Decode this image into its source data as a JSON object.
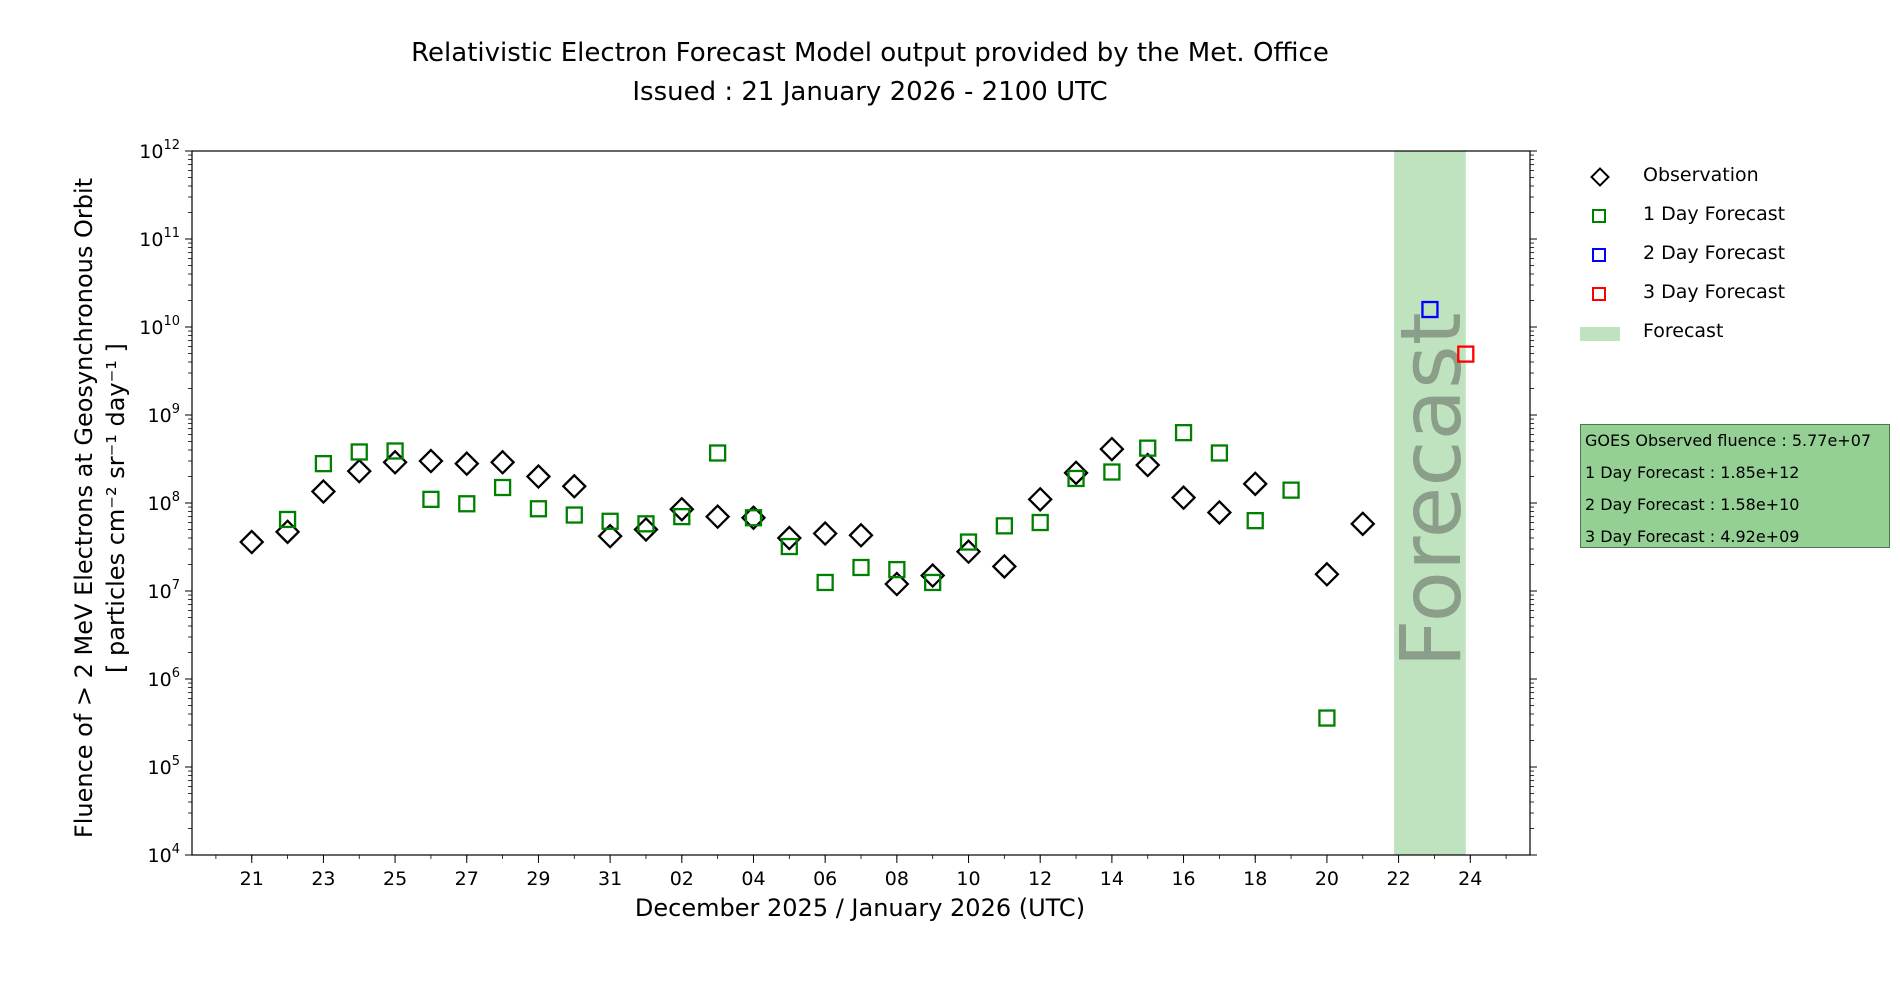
{
  "chart_data": {
    "type": "scatter",
    "title": "Relativistic Electron Forecast Model output provided by the Met. Office",
    "subtitle": "Issued : 21 January 2026 - 2100 UTC",
    "xlabel": "December 2025 / January 2026 (UTC)",
    "ylabel_line1": "Fluence of > 2 MeV Electrons at Geosynchronous Orbit",
    "ylabel_line2": "[ particles cm⁻² sr⁻¹ day⁻¹ ]",
    "y_scale": "log",
    "ylim": [
      10000,
      1000000000000
    ],
    "ytick_labels": [
      {
        "base": "10",
        "exp": "4"
      },
      {
        "base": "10",
        "exp": "5"
      },
      {
        "base": "10",
        "exp": "6"
      },
      {
        "base": "10",
        "exp": "7"
      },
      {
        "base": "10",
        "exp": "8"
      },
      {
        "base": "10",
        "exp": "9"
      },
      {
        "base": "10",
        "exp": "10"
      },
      {
        "base": "10",
        "exp": "11"
      },
      {
        "base": "10",
        "exp": "12"
      }
    ],
    "xlim": [
      "2025-12-19T08:00",
      "2026-01-25T16:00"
    ],
    "xtick_labels": [
      "21",
      "23",
      "25",
      "27",
      "29",
      "31",
      "02",
      "04",
      "06",
      "08",
      "10",
      "12",
      "14",
      "16",
      "18",
      "20",
      "22",
      "24"
    ],
    "xtick_dates": [
      "2025-12-21",
      "2025-12-23",
      "2025-12-25",
      "2025-12-27",
      "2025-12-29",
      "2025-12-31",
      "2026-01-02",
      "2026-01-04",
      "2026-01-06",
      "2026-01-08",
      "2026-01-10",
      "2026-01-12",
      "2026-01-14",
      "2026-01-16",
      "2026-01-18",
      "2026-01-20",
      "2026-01-22",
      "2026-01-24"
    ],
    "forecast_region": {
      "label": "Forecast",
      "start": "2026-01-21T21:00",
      "end": "2026-01-23T21:00",
      "color": "#bfe3bf"
    },
    "series": [
      {
        "name": "Observation",
        "marker": "diamond",
        "color": "#000000",
        "points": [
          [
            "2025-12-21",
            36000000
          ],
          [
            "2025-12-22",
            47000000
          ],
          [
            "2025-12-23",
            135000000
          ],
          [
            "2025-12-24",
            230000000
          ],
          [
            "2025-12-25",
            290000000
          ],
          [
            "2025-12-26",
            300000000
          ],
          [
            "2025-12-27",
            280000000
          ],
          [
            "2025-12-28",
            290000000
          ],
          [
            "2025-12-29",
            200000000
          ],
          [
            "2025-12-30",
            155000000
          ],
          [
            "2025-12-31",
            42000000
          ],
          [
            "2026-01-01",
            50000000
          ],
          [
            "2026-01-02",
            85000000
          ],
          [
            "2026-01-03",
            70000000
          ],
          [
            "2026-01-04",
            68000000
          ],
          [
            "2026-01-05",
            40000000
          ],
          [
            "2026-01-06",
            45000000
          ],
          [
            "2026-01-07",
            43000000
          ],
          [
            "2026-01-08",
            12000000
          ],
          [
            "2026-01-09",
            15000000
          ],
          [
            "2026-01-10",
            28000000
          ],
          [
            "2026-01-11",
            19000000
          ],
          [
            "2026-01-12",
            110000000
          ],
          [
            "2026-01-13",
            220000000
          ],
          [
            "2026-01-14",
            410000000
          ],
          [
            "2026-01-15",
            270000000
          ],
          [
            "2026-01-16",
            115000000
          ],
          [
            "2026-01-17",
            78000000
          ],
          [
            "2026-01-18",
            165000000
          ],
          [
            "2026-01-20",
            15500000
          ],
          [
            "2026-01-21",
            58000000
          ]
        ]
      },
      {
        "name": "1 Day Forecast",
        "marker": "square",
        "color": "#008000",
        "points": [
          [
            "2025-12-22",
            65000000
          ],
          [
            "2025-12-23",
            280000000
          ],
          [
            "2025-12-24",
            380000000
          ],
          [
            "2025-12-25",
            390000000
          ],
          [
            "2025-12-26",
            110000000
          ],
          [
            "2025-12-27",
            98000000
          ],
          [
            "2025-12-28",
            150000000
          ],
          [
            "2025-12-29",
            86000000
          ],
          [
            "2025-12-30",
            73000000
          ],
          [
            "2025-12-31",
            62000000
          ],
          [
            "2026-01-01",
            58000000
          ],
          [
            "2026-01-02",
            70000000
          ],
          [
            "2026-01-03",
            370000000
          ],
          [
            "2026-01-04",
            68000000
          ],
          [
            "2026-01-05",
            32000000
          ],
          [
            "2026-01-06",
            12500000
          ],
          [
            "2026-01-07",
            18500000
          ],
          [
            "2026-01-08",
            17500000
          ],
          [
            "2026-01-09",
            12500000
          ],
          [
            "2026-01-10",
            36000000
          ],
          [
            "2026-01-11",
            55000000
          ],
          [
            "2026-01-12",
            60000000
          ],
          [
            "2026-01-13",
            190000000
          ],
          [
            "2026-01-14",
            225000000
          ],
          [
            "2026-01-15",
            420000000
          ],
          [
            "2026-01-16",
            630000000
          ],
          [
            "2026-01-17",
            370000000
          ],
          [
            "2026-01-18",
            63000000
          ],
          [
            "2026-01-19",
            140000000
          ],
          [
            "2026-01-20",
            360000
          ]
        ]
      },
      {
        "name": "2 Day Forecast",
        "marker": "square",
        "color": "#0000ff",
        "points": [
          [
            "2026-01-22T21:00",
            15800000000
          ]
        ]
      },
      {
        "name": "3 Day Forecast",
        "marker": "square",
        "color": "#ff0000",
        "points": [
          [
            "2026-01-23T21:00",
            4920000000
          ]
        ]
      }
    ],
    "legend": {
      "placement": "right",
      "items": [
        {
          "label": "Observation",
          "symbol": "diamond",
          "color": "#000000"
        },
        {
          "label": "1 Day Forecast",
          "symbol": "square",
          "color": "#008000"
        },
        {
          "label": "2 Day Forecast",
          "symbol": "square",
          "color": "#0000ff"
        },
        {
          "label": "3 Day Forecast",
          "symbol": "square",
          "color": "#ff0000"
        },
        {
          "label": "Forecast",
          "symbol": "patch",
          "color": "#bfe3bf"
        }
      ]
    },
    "info_box": {
      "lines": [
        "GOES Observed fluence : 5.77e+07",
        "1 Day Forecast : 1.85e+12",
        "2 Day Forecast : 1.58e+10",
        "3 Day Forecast : 4.92e+09"
      ],
      "color": "#94cf94"
    },
    "grid": false
  }
}
